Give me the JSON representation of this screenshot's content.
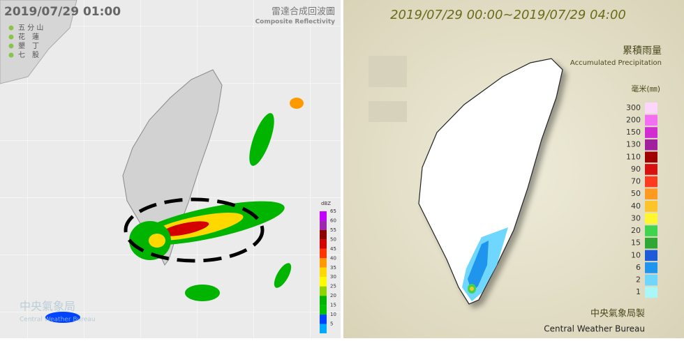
{
  "radar": {
    "timestamp": "2019/07/29 01:00",
    "title": "雷達合成回波圖",
    "subtitle": "Composite Reflectivity",
    "stations": [
      "五 分 山",
      "花　蓮",
      "墾　丁",
      "七　股"
    ],
    "scale_unit": "dBZ",
    "scale": [
      {
        "value": 65,
        "color": "#c400ff"
      },
      {
        "value": 60,
        "color": "#9c27b0"
      },
      {
        "value": 55,
        "color": "#8b0000"
      },
      {
        "value": 50,
        "color": "#d40000"
      },
      {
        "value": 45,
        "color": "#ff3300"
      },
      {
        "value": 40,
        "color": "#ff9900"
      },
      {
        "value": 35,
        "color": "#ffd800"
      },
      {
        "value": 30,
        "color": "#fffc00"
      },
      {
        "value": 25,
        "color": "#8fd400"
      },
      {
        "value": 20,
        "color": "#00b400"
      },
      {
        "value": 15,
        "color": "#00c000"
      },
      {
        "value": 10,
        "color": "#0044ff"
      },
      {
        "value": 5,
        "color": "#00aaff"
      }
    ],
    "watermark": [
      "中央氣象局",
      "Central Weather Bureau"
    ]
  },
  "rainfall": {
    "period": "2019/07/29 00:00~2019/07/29 04:00",
    "title": "累積雨量",
    "subtitle": "Accumulated Precipitation",
    "unit": "毫米(㎜)",
    "scale": [
      {
        "value": 300,
        "color": "#fdd6fd"
      },
      {
        "value": 200,
        "color": "#f36ef3"
      },
      {
        "value": 150,
        "color": "#d12bd1"
      },
      {
        "value": 130,
        "color": "#a0209e"
      },
      {
        "value": 110,
        "color": "#a00000"
      },
      {
        "value": 90,
        "color": "#d81010"
      },
      {
        "value": 70,
        "color": "#fd3b21"
      },
      {
        "value": 50,
        "color": "#fd9a1f"
      },
      {
        "value": 40,
        "color": "#fdc42a"
      },
      {
        "value": 30,
        "color": "#fef62f"
      },
      {
        "value": 20,
        "color": "#3fd44d"
      },
      {
        "value": 15,
        "color": "#2ea735"
      },
      {
        "value": 10,
        "color": "#1e5bd8"
      },
      {
        "value": 6,
        "color": "#1f95ee"
      },
      {
        "value": 2,
        "color": "#6fd6fd"
      },
      {
        "value": 1,
        "color": "#a9f7f7"
      }
    ],
    "credit_zh": "中央氣象局製",
    "credit_en": "Central Weather Bureau"
  }
}
